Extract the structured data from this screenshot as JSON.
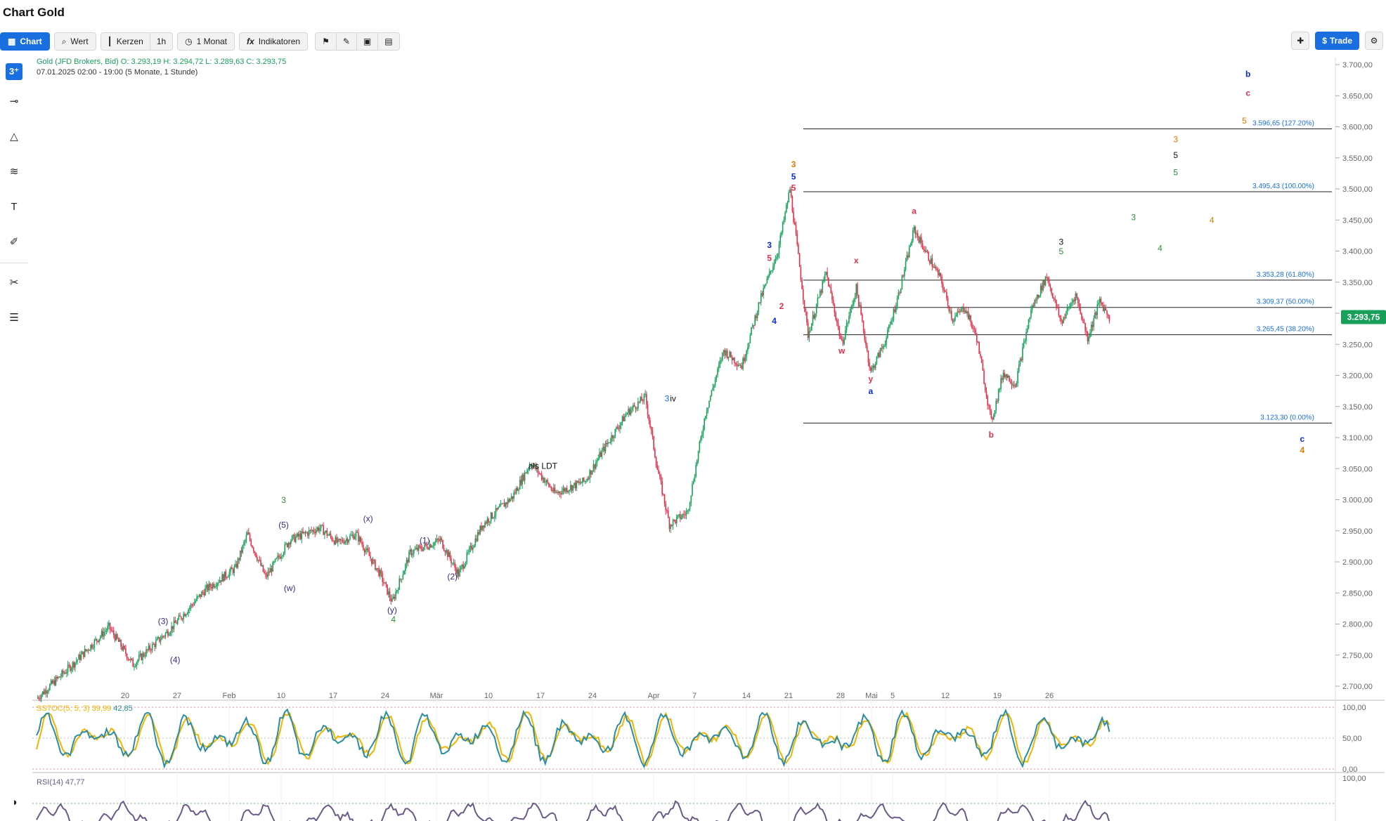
{
  "window": {
    "title": "Chart Gold"
  },
  "toolbar": {
    "chart": "Chart",
    "wert": "Wert",
    "kerzen": "Kerzen",
    "interval": "1h",
    "range": "1 Monat",
    "indikatoren": "Indikatoren",
    "trade": "Trade"
  },
  "legend": {
    "instrument": "Gold (JFD Brokers, Bid)  O: 3.293,19  H: 3.294,72  L: 3.289,63  C: 3.293,75",
    "period": "07.01.2025 02:00 - 19:00   (5 Monate, 1 Stunde)"
  },
  "indicators": {
    "sstoc": "SSTOC(5, 5, 3)",
    "sstoc_k": "39,99",
    "sstoc_d": "42,85",
    "rsi": "RSI(14)",
    "rsi_value": "47,77",
    "sstoc_levels": [
      "100,00",
      "50,00",
      "0,00"
    ],
    "rsi_levels": [
      "100,00"
    ]
  },
  "colors": {
    "up": "#18a05a",
    "down": "#e0314a",
    "accent": "#1a6fe0",
    "price_tag": "#18a05a",
    "sstoc_k": "#2a8ea0",
    "sstoc_d": "#f0b400",
    "rsi": "#6a5a8a"
  },
  "icons": [
    "search-icon",
    "clock-icon",
    "fx-icon",
    "bookmark-icon",
    "draw-icon",
    "calendar-icon",
    "layout-icon",
    "crosshair-icon",
    "settings-icon",
    "contrast-icon"
  ],
  "chart_data": {
    "type": "candlestick",
    "current_price_label": "3.293,75",
    "y_ticks": [
      "3.700,00",
      "3.650,00",
      "3.600,00",
      "3.550,00",
      "3.500,00",
      "3.450,00",
      "3.400,00",
      "3.350,00",
      "3.300,00",
      "3.250,00",
      "3.200,00",
      "3.150,00",
      "3.100,00",
      "3.050,00",
      "3.000,00",
      "2.950,00",
      "2.900,00",
      "2.850,00",
      "2.800,00",
      "2.750,00",
      "2.700,00"
    ],
    "x_ticks": [
      "20",
      "27",
      "Feb",
      "10",
      "17",
      "24",
      "Mär",
      "10",
      "17",
      "24",
      "Apr",
      "7",
      "14",
      "21",
      "28",
      "Mai",
      "5",
      "12",
      "19",
      "26"
    ],
    "ylim": [
      2680,
      3720
    ],
    "price_path": [
      {
        "i": 0,
        "p": 2680
      },
      {
        "i": 30,
        "p": 2735
      },
      {
        "i": 60,
        "p": 2795
      },
      {
        "i": 80,
        "p": 2735
      },
      {
        "i": 110,
        "p": 2790
      },
      {
        "i": 140,
        "p": 2855
      },
      {
        "i": 165,
        "p": 2890
      },
      {
        "i": 175,
        "p": 2945
      },
      {
        "i": 190,
        "p": 2875
      },
      {
        "i": 210,
        "p": 2935
      },
      {
        "i": 235,
        "p": 2955
      },
      {
        "i": 250,
        "p": 2930
      },
      {
        "i": 265,
        "p": 2945
      },
      {
        "i": 285,
        "p": 2880
      },
      {
        "i": 295,
        "p": 2835
      },
      {
        "i": 310,
        "p": 2915
      },
      {
        "i": 335,
        "p": 2935
      },
      {
        "i": 350,
        "p": 2880
      },
      {
        "i": 370,
        "p": 2960
      },
      {
        "i": 395,
        "p": 3005
      },
      {
        "i": 410,
        "p": 3060
      },
      {
        "i": 430,
        "p": 3010
      },
      {
        "i": 455,
        "p": 3030
      },
      {
        "i": 470,
        "p": 3080
      },
      {
        "i": 490,
        "p": 3140
      },
      {
        "i": 505,
        "p": 3165
      },
      {
        "i": 515,
        "p": 3050
      },
      {
        "i": 525,
        "p": 2960
      },
      {
        "i": 540,
        "p": 2980
      },
      {
        "i": 555,
        "p": 3140
      },
      {
        "i": 570,
        "p": 3240
      },
      {
        "i": 585,
        "p": 3215
      },
      {
        "i": 600,
        "p": 3320
      },
      {
        "i": 615,
        "p": 3400
      },
      {
        "i": 625,
        "p": 3500
      },
      {
        "i": 640,
        "p": 3265
      },
      {
        "i": 655,
        "p": 3365
      },
      {
        "i": 668,
        "p": 3250
      },
      {
        "i": 680,
        "p": 3340
      },
      {
        "i": 692,
        "p": 3205
      },
      {
        "i": 705,
        "p": 3260
      },
      {
        "i": 715,
        "p": 3330
      },
      {
        "i": 728,
        "p": 3435
      },
      {
        "i": 740,
        "p": 3390
      },
      {
        "i": 750,
        "p": 3355
      },
      {
        "i": 760,
        "p": 3290
      },
      {
        "i": 770,
        "p": 3310
      },
      {
        "i": 780,
        "p": 3260
      },
      {
        "i": 792,
        "p": 3125
      },
      {
        "i": 802,
        "p": 3205
      },
      {
        "i": 812,
        "p": 3185
      },
      {
        "i": 825,
        "p": 3305
      },
      {
        "i": 838,
        "p": 3360
      },
      {
        "i": 850,
        "p": 3285
      },
      {
        "i": 862,
        "p": 3330
      },
      {
        "i": 872,
        "p": 3260
      },
      {
        "i": 882,
        "p": 3320
      },
      {
        "i": 890,
        "p": 3294
      }
    ],
    "fib_levels": [
      {
        "value": 3596.65,
        "label": "3.596,65 (127.20%)"
      },
      {
        "value": 3495.43,
        "label": "3.495,43 (100.00%)"
      },
      {
        "value": 3353.28,
        "label": "3.353,28 (61.80%)"
      },
      {
        "value": 3309.37,
        "label": "3.309,37 (50.00%)"
      },
      {
        "value": 3265.45,
        "label": "3.265,45 (38.20%)"
      },
      {
        "value": 3123.3,
        "label": "3.123,30 (0.00%)"
      }
    ],
    "annotations": [
      {
        "t": "3",
        "i": 205,
        "p": 2995,
        "c": "#2e8b3a"
      },
      {
        "t": "(5)",
        "i": 205,
        "p": 2955,
        "c": "#3a2a8a"
      },
      {
        "t": "(3)",
        "i": 105,
        "p": 2800,
        "c": "#3a2a8a"
      },
      {
        "t": "(4)",
        "i": 115,
        "p": 2738,
        "c": "#3a2a8a"
      },
      {
        "t": "(w)",
        "i": 210,
        "p": 2853,
        "c": "#3a2a8a"
      },
      {
        "t": "(x)",
        "i": 275,
        "p": 2965,
        "c": "#3a2a8a"
      },
      {
        "t": "(y)",
        "i": 295,
        "p": 2818,
        "c": "#3a2a8a"
      },
      {
        "t": "4",
        "i": 296,
        "p": 2803,
        "c": "#2e8b3a"
      },
      {
        "t": "(1)",
        "i": 322,
        "p": 2930,
        "c": "#3a2a8a"
      },
      {
        "t": "(2)",
        "i": 345,
        "p": 2872,
        "c": "#3a2a8a"
      },
      {
        "t": "als LDT",
        "i": 420,
        "p": 3050,
        "c": "#111"
      },
      {
        "t": "3",
        "i": 523,
        "p": 3158,
        "c": "#1a6fe0"
      },
      {
        "t": "iv",
        "i": 528,
        "p": 3158,
        "c": "#111"
      },
      {
        "t": "3",
        "i": 608,
        "p": 3405,
        "c": "#0a2ad0",
        "s": 18
      },
      {
        "t": "5",
        "i": 608,
        "p": 3384,
        "c": "#e0314a",
        "s": 18
      },
      {
        "t": "4",
        "i": 612,
        "p": 3283,
        "c": "#0a2ad0",
        "s": 18
      },
      {
        "t": "2",
        "i": 618,
        "p": 3307,
        "c": "#e0314a",
        "s": 18
      },
      {
        "t": "3",
        "i": 628,
        "p": 3535,
        "c": "#e07a00",
        "s": 20
      },
      {
        "t": "5",
        "i": 628,
        "p": 3515,
        "c": "#0a2ad0",
        "s": 20
      },
      {
        "t": "5",
        "i": 628,
        "p": 3497,
        "c": "#e0314a",
        "s": 16
      },
      {
        "t": "w",
        "i": 668,
        "p": 3235,
        "c": "#e0314a",
        "s": 16
      },
      {
        "t": "x",
        "i": 680,
        "p": 3380,
        "c": "#e0314a",
        "s": 16
      },
      {
        "t": "a",
        "i": 692,
        "p": 3170,
        "c": "#0a2ad0",
        "s": 18
      },
      {
        "t": "y",
        "i": 692,
        "p": 3190,
        "c": "#e0314a",
        "s": 16
      },
      {
        "t": "a",
        "i": 728,
        "p": 3460,
        "c": "#e0314a",
        "s": 16
      },
      {
        "t": "b",
        "i": 792,
        "p": 3100,
        "c": "#e0314a",
        "s": 16
      },
      {
        "t": "3",
        "i": 850,
        "p": 3410,
        "c": "#111"
      },
      {
        "t": "5",
        "i": 850,
        "p": 3395,
        "c": "#2e8b3a"
      },
      {
        "t": "3",
        "i": 910,
        "p": 3450,
        "c": "#2e8b3a"
      },
      {
        "t": "4",
        "i": 932,
        "p": 3400,
        "c": "#2e8b3a"
      },
      {
        "t": "3",
        "i": 945,
        "p": 3575,
        "c": "#e07a00"
      },
      {
        "t": "5",
        "i": 945,
        "p": 3550,
        "c": "#111"
      },
      {
        "t": "5",
        "i": 945,
        "p": 3522,
        "c": "#2e8b3a"
      },
      {
        "t": "4",
        "i": 975,
        "p": 3445,
        "c": "#e07a00"
      },
      {
        "t": "5",
        "i": 1002,
        "p": 3605,
        "c": "#e07a00"
      },
      {
        "t": "b",
        "i": 1005,
        "p": 3680,
        "c": "#0a2ad0",
        "s": 18
      },
      {
        "t": "c",
        "i": 1005,
        "p": 3650,
        "c": "#e0314a",
        "s": 18
      },
      {
        "t": "c",
        "i": 1050,
        "p": 3093,
        "c": "#0a2ad0",
        "s": 18
      },
      {
        "t": "4",
        "i": 1050,
        "p": 3075,
        "c": "#e07a00",
        "s": 18
      }
    ]
  }
}
